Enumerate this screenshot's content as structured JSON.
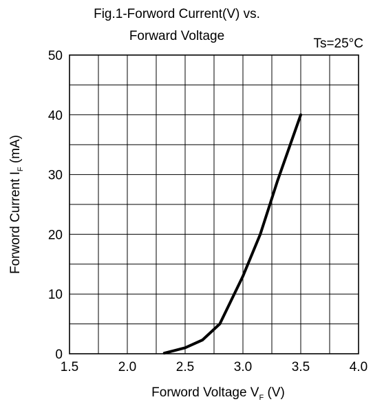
{
  "chart_data": {
    "type": "line",
    "title_line1": "Fig.1-Forword Current(V) vs.",
    "title_line2": "Forward Voltage",
    "condition": "Ts=25°C",
    "xlabel": "Forword Voltage V",
    "xlabel_sub": "F",
    "xlabel_unit": " (V)",
    "ylabel": "Forword Current I",
    "ylabel_sub": "F",
    "ylabel_unit": "  (mA)",
    "xlim": [
      1.5,
      4.0
    ],
    "ylim": [
      0,
      50
    ],
    "x_ticks": [
      "1.5",
      "2.0",
      "2.5",
      "3.0",
      "3.5",
      "4.0"
    ],
    "y_ticks": [
      "0",
      "10",
      "20",
      "30",
      "40",
      "50"
    ],
    "grid": true,
    "x_grid_step": 0.25,
    "y_grid_step": 5,
    "series": [
      {
        "color": "#000000",
        "x": [
          2.32,
          2.5,
          2.65,
          2.8,
          3.0,
          3.15,
          3.3,
          3.5
        ],
        "y": [
          0.1,
          1.0,
          2.3,
          5.0,
          13.0,
          20.0,
          29.0,
          40.0
        ]
      }
    ]
  }
}
